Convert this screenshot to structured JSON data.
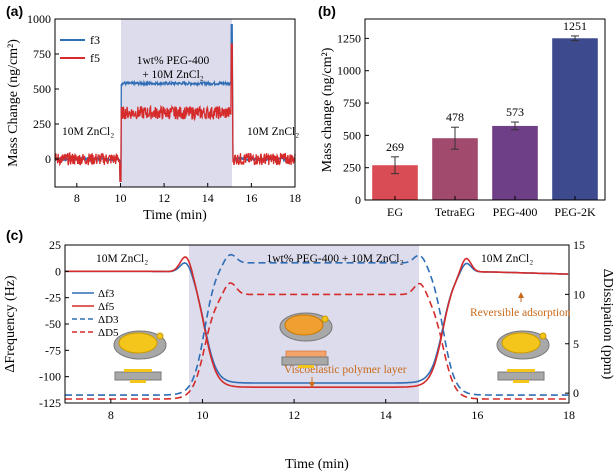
{
  "chart_data": [
    {
      "panel": "(a)",
      "type": "line",
      "xlabel": "Time (min)",
      "ylabel": "Mass Change (ng/cm²)",
      "xlim": [
        7,
        18
      ],
      "ylim": [
        -200,
        1000
      ],
      "xticks": [
        "8",
        "10",
        "12",
        "14",
        "16",
        "18"
      ],
      "yticks": [
        "0",
        "250",
        "500",
        "750",
        "1000"
      ],
      "shaded_region": [
        10,
        15.1
      ],
      "annotations": {
        "left": "10M ZnCl₂",
        "right": "10M ZnCl₂",
        "center_line1": "1wt% PEG-400",
        "center_line2": "+ 10M ZnCl₂"
      },
      "series": [
        {
          "name": "f3",
          "color": "#2f6db5",
          "baseline": 0,
          "plateau": 540
        },
        {
          "name": "f5",
          "color": "#d62b2b",
          "baseline": 0,
          "plateau": 330
        }
      ],
      "legend": "top-left"
    },
    {
      "panel": "(b)",
      "type": "bar",
      "xlabel": "",
      "ylabel": "Mass change (ng/cm²)",
      "ylim": [
        0,
        1400
      ],
      "yticks": [
        "0",
        "250",
        "500",
        "750",
        "1000",
        "1250"
      ],
      "categories": [
        "EG",
        "TetraEG",
        "PEG-400",
        "PEG-2K"
      ],
      "values": [
        269,
        478,
        573,
        1251
      ],
      "value_labels": [
        "269",
        "478",
        "573",
        "1251"
      ],
      "errors": [
        65,
        85,
        30,
        18
      ],
      "colors": [
        "#d94b55",
        "#a24a6e",
        "#6e3f86",
        "#3d4a8e"
      ]
    },
    {
      "panel": "(c)",
      "type": "line",
      "xlabel": "Time (min)",
      "ylabel_left": "ΔFrequency (Hz)",
      "ylabel_right": "ΔDissipation (ppm)",
      "xlim": [
        7,
        18
      ],
      "ylim_left": [
        -125,
        25
      ],
      "ylim_right": [
        -1,
        15
      ],
      "xticks": [
        "8",
        "10",
        "12",
        "14",
        "16",
        "18"
      ],
      "yticks_left": [
        "25",
        "0",
        "-25",
        "-50",
        "-75",
        "-100",
        "-125"
      ],
      "yticks_right": [
        "15",
        "10",
        "5",
        "0"
      ],
      "shaded_region": [
        9.7,
        14.8
      ],
      "annotations": {
        "left": "10M ZnCl₂",
        "center": "1wt% PEG-400 + 10M ZnCl₂",
        "right": "10M ZnCl₂",
        "viscoelastic": "Viscoelastic polymer layer",
        "reversible": "Reversible adsorption"
      },
      "series": [
        {
          "name": "Δf3",
          "color": "#2f6db5",
          "dash": "solid"
        },
        {
          "name": "Δf5",
          "color": "#d62b2b",
          "dash": "solid"
        },
        {
          "name": "ΔD3",
          "color": "#2f6db5",
          "dash": "dashed"
        },
        {
          "name": "ΔD5",
          "color": "#d62b2b",
          "dash": "dashed"
        }
      ],
      "legend": "left"
    }
  ]
}
